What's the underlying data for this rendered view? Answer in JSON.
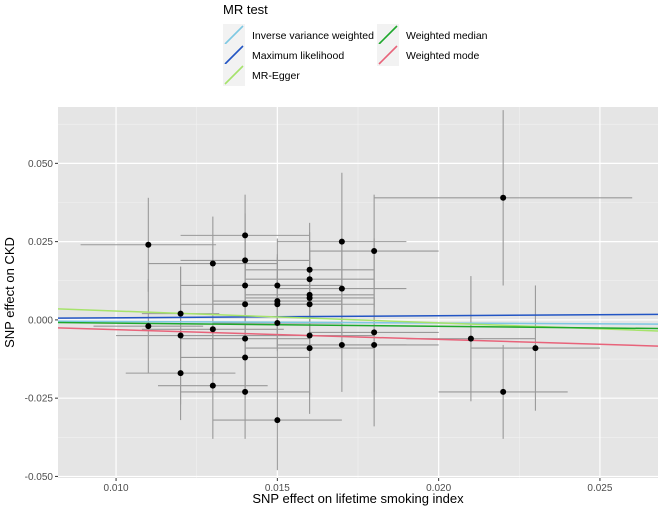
{
  "chart_data": {
    "type": "scatter",
    "title": "",
    "xlabel": "SNP effect on lifetime smoking index",
    "ylabel": "SNP effect on CKD",
    "xlim": [
      0.0082,
      0.0268
    ],
    "ylim": [
      -0.0505,
      0.068
    ],
    "x_ticks": [
      0.01,
      0.015,
      0.02,
      0.025
    ],
    "x_tick_labels": [
      "0.010",
      "0.015",
      "0.020",
      "0.025"
    ],
    "y_ticks": [
      -0.05,
      -0.025,
      0.0,
      0.025,
      0.05
    ],
    "y_tick_labels": [
      "-0.050",
      "-0.025",
      "0.000",
      "0.025",
      "0.050"
    ],
    "grid": true,
    "legend": {
      "title": "MR test",
      "position": "top",
      "entries": [
        {
          "name": "Inverse variance weighted",
          "color": "#7ec8e3"
        },
        {
          "name": "Maximum likelihood",
          "color": "#2255c4"
        },
        {
          "name": "MR-Egger",
          "color": "#a6e36b"
        },
        {
          "name": "Weighted median",
          "color": "#1ea82c"
        },
        {
          "name": "Weighted mode",
          "color": "#e8637a"
        }
      ]
    },
    "points": [
      {
        "x": 0.011,
        "y": 0.024,
        "xerr": 0.0021,
        "yerr": 0.015
      },
      {
        "x": 0.011,
        "y": -0.002,
        "xerr": 0.0017,
        "yerr": 0.015
      },
      {
        "x": 0.012,
        "y": 0.002,
        "xerr": 0.0012,
        "yerr": 0.015
      },
      {
        "x": 0.012,
        "y": -0.005,
        "xerr": 0.002,
        "yerr": 0.022
      },
      {
        "x": 0.012,
        "y": -0.017,
        "xerr": 0.0017,
        "yerr": 0.015
      },
      {
        "x": 0.013,
        "y": 0.018,
        "xerr": 0.002,
        "yerr": 0.015
      },
      {
        "x": 0.013,
        "y": -0.003,
        "xerr": 0.0022,
        "yerr": 0.015
      },
      {
        "x": 0.013,
        "y": -0.021,
        "xerr": 0.0017,
        "yerr": 0.017
      },
      {
        "x": 0.014,
        "y": 0.027,
        "xerr": 0.002,
        "yerr": 0.013
      },
      {
        "x": 0.014,
        "y": 0.019,
        "xerr": 0.002,
        "yerr": 0.015
      },
      {
        "x": 0.014,
        "y": 0.011,
        "xerr": 0.002,
        "yerr": 0.015
      },
      {
        "x": 0.014,
        "y": 0.005,
        "xerr": 0.002,
        "yerr": 0.015
      },
      {
        "x": 0.014,
        "y": -0.006,
        "xerr": 0.002,
        "yerr": 0.015
      },
      {
        "x": 0.014,
        "y": -0.012,
        "xerr": 0.002,
        "yerr": 0.013
      },
      {
        "x": 0.014,
        "y": -0.023,
        "xerr": 0.002,
        "yerr": 0.015
      },
      {
        "x": 0.015,
        "y": 0.011,
        "xerr": 0.002,
        "yerr": 0.015
      },
      {
        "x": 0.015,
        "y": 0.006,
        "xerr": 0.002,
        "yerr": 0.015
      },
      {
        "x": 0.015,
        "y": 0.005,
        "xerr": 0.002,
        "yerr": 0.015
      },
      {
        "x": 0.015,
        "y": -0.001,
        "xerr": 0.002,
        "yerr": 0.015
      },
      {
        "x": 0.015,
        "y": -0.032,
        "xerr": 0.002,
        "yerr": 0.016
      },
      {
        "x": 0.016,
        "y": 0.016,
        "xerr": 0.002,
        "yerr": 0.015
      },
      {
        "x": 0.016,
        "y": 0.013,
        "xerr": 0.002,
        "yerr": 0.015
      },
      {
        "x": 0.016,
        "y": 0.008,
        "xerr": 0.002,
        "yerr": 0.015
      },
      {
        "x": 0.016,
        "y": 0.007,
        "xerr": 0.002,
        "yerr": 0.015
      },
      {
        "x": 0.016,
        "y": 0.005,
        "xerr": 0.002,
        "yerr": 0.015
      },
      {
        "x": 0.016,
        "y": -0.005,
        "xerr": 0.002,
        "yerr": 0.025
      },
      {
        "x": 0.016,
        "y": -0.009,
        "xerr": 0.002,
        "yerr": 0.015
      },
      {
        "x": 0.017,
        "y": 0.025,
        "xerr": 0.002,
        "yerr": 0.022
      },
      {
        "x": 0.017,
        "y": 0.01,
        "xerr": 0.002,
        "yerr": 0.015
      },
      {
        "x": 0.017,
        "y": -0.008,
        "xerr": 0.002,
        "yerr": 0.015
      },
      {
        "x": 0.018,
        "y": 0.022,
        "xerr": 0.002,
        "yerr": 0.018
      },
      {
        "x": 0.018,
        "y": -0.004,
        "xerr": 0.002,
        "yerr": 0.03
      },
      {
        "x": 0.018,
        "y": -0.008,
        "xerr": 0.002,
        "yerr": 0.015
      },
      {
        "x": 0.021,
        "y": -0.006,
        "xerr": 0.002,
        "yerr": 0.02
      },
      {
        "x": 0.022,
        "y": 0.039,
        "xerr": 0.004,
        "yerr": 0.028
      },
      {
        "x": 0.022,
        "y": -0.023,
        "xerr": 0.002,
        "yerr": 0.015
      },
      {
        "x": 0.023,
        "y": -0.009,
        "xerr": 0.002,
        "yerr": 0.02
      }
    ],
    "lines": [
      {
        "name": "Inverse variance weighted",
        "slope": -0.05,
        "intercept": 0.0
      },
      {
        "name": "Maximum likelihood",
        "slope": 0.0665,
        "intercept": 0.0
      },
      {
        "name": "MR-Egger",
        "slope": -0.38,
        "intercept": 0.00664
      },
      {
        "name": "Weighted median",
        "slope": -0.103,
        "intercept": 0.0
      },
      {
        "name": "Weighted mode",
        "slope": -0.312,
        "intercept": 0.0
      }
    ]
  }
}
